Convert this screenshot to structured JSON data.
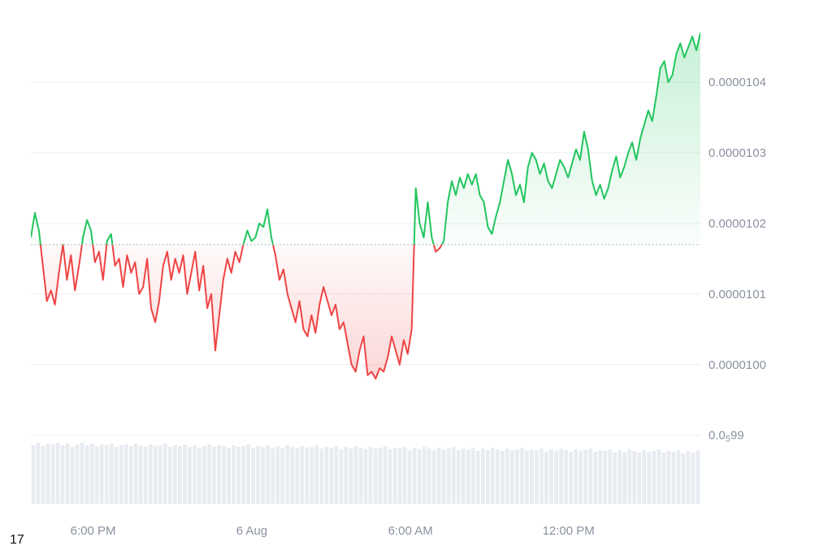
{
  "page": {
    "footnote": "17"
  },
  "colors": {
    "up": "#22c55e",
    "down": "#ef4444",
    "grid": "#eceef1",
    "baseline_dotted": "#a8b0bc",
    "axis_text": "#8a91a0",
    "volume_bar": "#e8ecf1",
    "background": "#ffffff"
  },
  "chart_data": {
    "type": "line",
    "title": "",
    "xlabel": "",
    "ylabel": "",
    "price_unit": "price = value_e9 x 1e-9",
    "baseline_value_e9": 10170,
    "y_axis": {
      "range_e9": [
        9895,
        10505
      ],
      "ticks": [
        {
          "value_e9": 10400,
          "label": "0.0000104"
        },
        {
          "value_e9": 10300,
          "label": "0.0000103"
        },
        {
          "value_e9": 10200,
          "label": "0.0000102"
        },
        {
          "value_e9": 10100,
          "label": "0.0000101"
        },
        {
          "value_e9": 10000,
          "label": "0.0000100"
        },
        {
          "value_e9": 9900,
          "label": "0.0₅99",
          "label_parts": {
            "prefix": "0.0",
            "sub": "5",
            "suffix": "99"
          }
        }
      ]
    },
    "x_axis": {
      "ticks": [
        {
          "pos": 0.093,
          "label": "6:00 PM"
        },
        {
          "pos": 0.33,
          "label": "6 Aug"
        },
        {
          "pos": 0.567,
          "label": "6:00 AM"
        },
        {
          "pos": 0.803,
          "label": "12:00 PM"
        }
      ]
    },
    "series": [
      {
        "name": "price_e9",
        "values": [
          10180,
          10215,
          10190,
          10140,
          10090,
          10105,
          10085,
          10130,
          10170,
          10120,
          10155,
          10105,
          10140,
          10180,
          10205,
          10190,
          10145,
          10160,
          10120,
          10175,
          10185,
          10140,
          10150,
          10110,
          10155,
          10130,
          10145,
          10100,
          10110,
          10150,
          10080,
          10060,
          10090,
          10140,
          10160,
          10120,
          10150,
          10130,
          10155,
          10100,
          10130,
          10160,
          10105,
          10140,
          10080,
          10100,
          10020,
          10070,
          10120,
          10150,
          10130,
          10160,
          10145,
          10170,
          10190,
          10175,
          10180,
          10200,
          10195,
          10220,
          10180,
          10155,
          10120,
          10135,
          10100,
          10080,
          10060,
          10090,
          10050,
          10040,
          10070,
          10045,
          10085,
          10110,
          10090,
          10070,
          10085,
          10050,
          10060,
          10030,
          10000,
          9990,
          10020,
          10040,
          9985,
          9990,
          9980,
          9995,
          9990,
          10010,
          10040,
          10020,
          10000,
          10035,
          10015,
          10050,
          10250,
          10200,
          10180,
          10230,
          10180,
          10160,
          10165,
          10175,
          10230,
          10260,
          10240,
          10265,
          10250,
          10270,
          10255,
          10270,
          10240,
          10230,
          10195,
          10185,
          10210,
          10230,
          10260,
          10290,
          10270,
          10240,
          10255,
          10230,
          10280,
          10300,
          10290,
          10270,
          10285,
          10260,
          10250,
          10270,
          10290,
          10280,
          10265,
          10285,
          10305,
          10290,
          10330,
          10305,
          10260,
          10240,
          10255,
          10235,
          10250,
          10275,
          10295,
          10265,
          10280,
          10300,
          10315,
          10290,
          10320,
          10340,
          10360,
          10345,
          10380,
          10420,
          10430,
          10400,
          10410,
          10440,
          10455,
          10435,
          10450,
          10465,
          10445,
          10470
        ]
      }
    ],
    "volume_bars_relative": [
      72,
      75,
      71,
      74,
      73,
      75,
      72,
      74,
      70,
      73,
      75,
      72,
      74,
      71,
      73,
      72,
      74,
      70,
      72,
      73,
      71,
      74,
      72,
      70,
      73,
      71,
      72,
      74,
      70,
      72,
      71,
      73,
      70,
      72,
      69,
      71,
      73,
      70,
      72,
      71,
      69,
      72,
      70,
      71,
      73,
      69,
      71,
      70,
      72,
      68,
      71,
      69,
      72,
      70,
      68,
      71,
      69,
      70,
      72,
      68,
      70,
      69,
      71,
      67,
      70,
      68,
      71,
      69,
      67,
      70,
      68,
      69,
      71,
      67,
      69,
      68,
      70,
      66,
      69,
      67,
      70,
      68,
      66,
      69,
      67,
      68,
      70,
      66,
      68,
      67,
      69,
      65,
      68,
      66,
      69,
      67,
      65,
      68,
      66,
      67,
      69,
      65,
      67,
      66,
      68,
      64,
      67,
      65,
      68,
      66,
      64,
      67,
      65,
      66,
      68,
      64,
      66,
      65,
      67,
      63,
      66,
      64,
      67,
      65,
      63,
      66,
      64,
      65,
      67,
      63,
      65,
      64,
      66,
      62,
      65,
      63,
      66
    ]
  }
}
